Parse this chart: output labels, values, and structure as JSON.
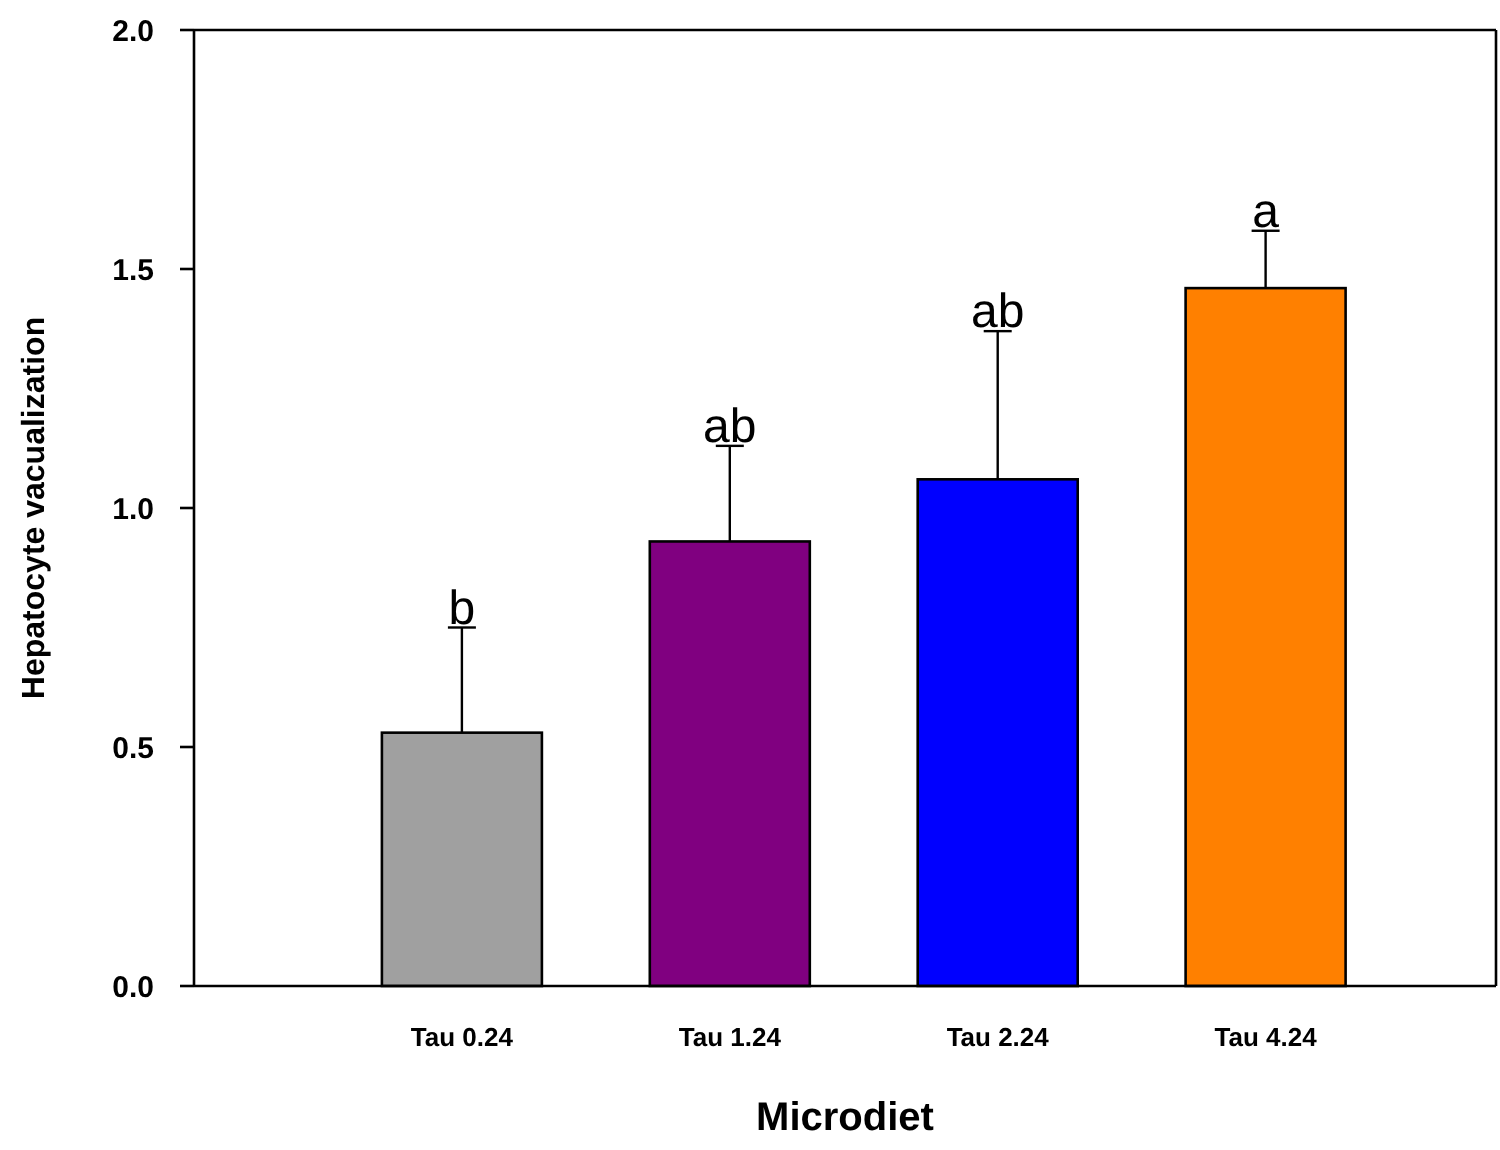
{
  "chart_data": {
    "type": "bar",
    "xlabel": "Microdiet",
    "ylabel": "Hepatocyte vacualization",
    "categories": [
      "Tau 0.24",
      "Tau 1.24",
      "Tau 2.24",
      "Tau 4.24"
    ],
    "values": [
      0.53,
      0.93,
      1.06,
      1.46
    ],
    "colors": [
      "#a0a0a0",
      "#800080",
      "#0000ff",
      "#ff8000"
    ],
    "errors": [
      [
        0.53,
        0.75
      ],
      [
        0.93,
        1.13
      ],
      [
        1.06,
        1.37
      ],
      [
        1.46,
        1.58
      ]
    ],
    "ylim": [
      0,
      2
    ],
    "yticks": [
      {
        "value": 0,
        "label": "0.0"
      },
      {
        "value": 0.5,
        "label": "0.5"
      },
      {
        "value": 1,
        "label": "1.0"
      },
      {
        "value": 1.5,
        "label": "1.5"
      },
      {
        "value": 2,
        "label": "2.0"
      }
    ],
    "grid": false,
    "annotations": [
      {
        "text": "b",
        "x": "Tau 0.24",
        "y": 0.75
      },
      {
        "text": "ab",
        "x": "Tau 1.24",
        "y": 1.13
      },
      {
        "text": "ab",
        "x": "Tau 2.24",
        "y": 1.37
      },
      {
        "text": "a",
        "x": "Tau 4.24",
        "y": 1.58
      }
    ]
  }
}
